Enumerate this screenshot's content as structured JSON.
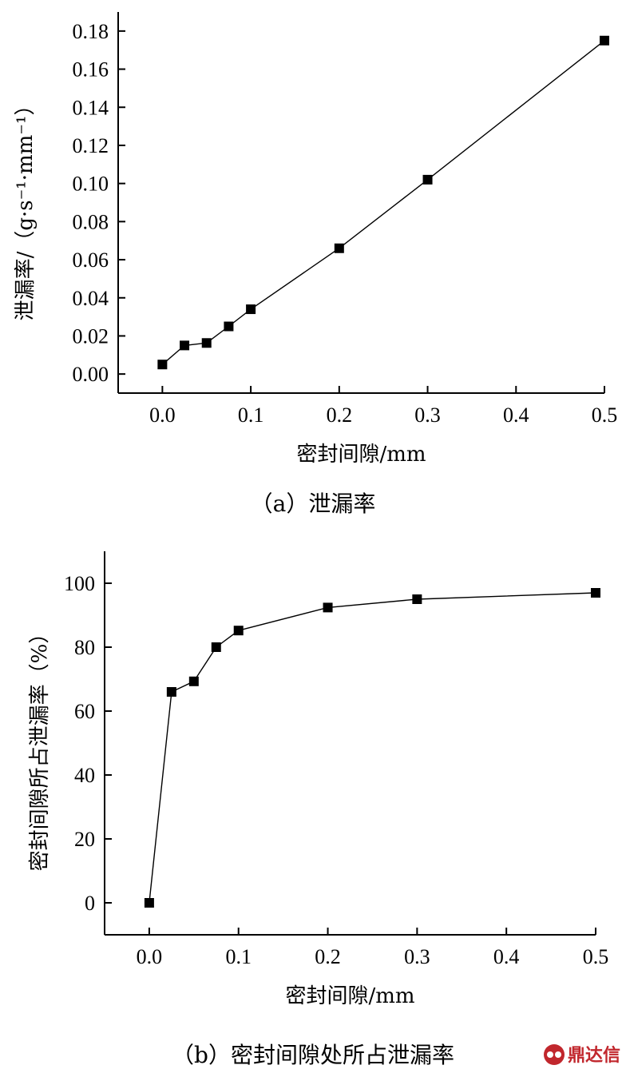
{
  "chart_data": [
    {
      "type": "line",
      "marker": "square",
      "x": [
        0.0,
        0.025,
        0.05,
        0.075,
        0.1,
        0.2,
        0.3,
        0.5
      ],
      "y": [
        0.005,
        0.015,
        0.0163,
        0.025,
        0.034,
        0.066,
        0.102,
        0.175
      ],
      "xlabel": "密封间隙/mm",
      "ylabel": "泄漏率/（g·s⁻¹·mm⁻¹）",
      "xlim": [
        -0.05,
        0.5
      ],
      "ylim": [
        -0.01,
        0.19
      ],
      "xticks": [
        0.0,
        0.1,
        0.2,
        0.3,
        0.4,
        0.5
      ],
      "xtick_labels": [
        "0.0",
        "0.1",
        "0.2",
        "0.3",
        "0.4",
        "0.5"
      ],
      "yticks": [
        0.0,
        0.02,
        0.04,
        0.06,
        0.08,
        0.1,
        0.12,
        0.14,
        0.16,
        0.18
      ],
      "ytick_labels": [
        "0.00",
        "0.02",
        "0.04",
        "0.06",
        "0.08",
        "0.10",
        "0.12",
        "0.14",
        "0.16",
        "0.18"
      ],
      "caption": "（a）泄漏率",
      "grid": false
    },
    {
      "type": "line",
      "marker": "square",
      "x": [
        0.0,
        0.025,
        0.05,
        0.075,
        0.1,
        0.2,
        0.3,
        0.5
      ],
      "y": [
        0,
        66,
        69.3,
        80,
        85.2,
        92.4,
        95,
        97
      ],
      "xlabel": "密封间隙/mm",
      "ylabel": "密封间隙所占泄漏率（%）",
      "xlim": [
        -0.05,
        0.5
      ],
      "ylim": [
        -10,
        110
      ],
      "xticks": [
        0.0,
        0.1,
        0.2,
        0.3,
        0.4,
        0.5
      ],
      "xtick_labels": [
        "0.0",
        "0.1",
        "0.2",
        "0.3",
        "0.4",
        "0.5"
      ],
      "yticks": [
        0,
        20,
        40,
        60,
        80,
        100
      ],
      "ytick_labels": [
        "0",
        "20",
        "40",
        "60",
        "80",
        "100"
      ],
      "caption": "（b）密封间隙处所占泄漏率",
      "grid": false
    }
  ],
  "watermark": {
    "text": "鼎达信",
    "color": "#c1272d",
    "icon": "ddx-logo-icon"
  }
}
